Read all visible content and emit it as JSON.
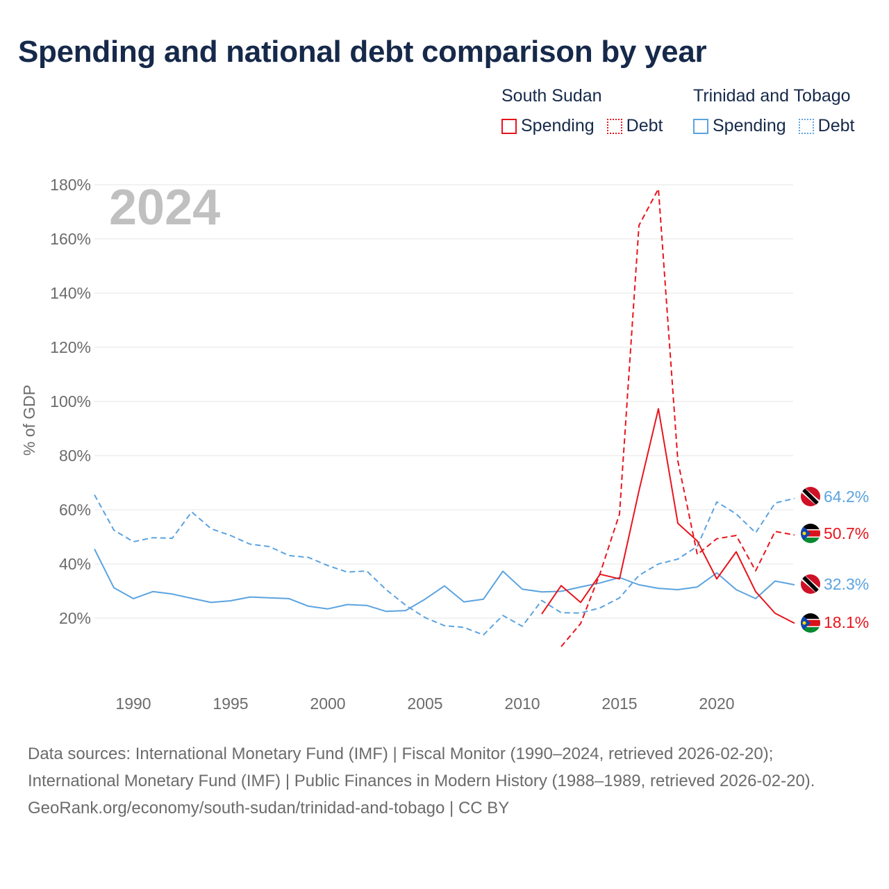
{
  "title": "Spending and national debt comparison by year",
  "legend": {
    "groups": [
      {
        "name": "South Sudan",
        "color": "#e8141c",
        "items": [
          {
            "label": "Spending",
            "style": "solid"
          },
          {
            "label": "Debt",
            "style": "dotted"
          }
        ]
      },
      {
        "name": "Trinidad and Tobago",
        "color": "#5ba3e0",
        "items": [
          {
            "label": "Spending",
            "style": "solid"
          },
          {
            "label": "Debt",
            "style": "dotted"
          }
        ]
      }
    ]
  },
  "chart_data": {
    "type": "line",
    "year_label": "2024",
    "ylabel": "% of GDP",
    "ylim": [
      0,
      180
    ],
    "xlim": [
      1988,
      2024
    ],
    "y_ticks": [
      20,
      40,
      60,
      80,
      100,
      120,
      140,
      160,
      180
    ],
    "y_tick_labels": [
      "20%",
      "40%",
      "60%",
      "80%",
      "100%",
      "120%",
      "140%",
      "160%",
      "180%"
    ],
    "x_ticks": [
      1990,
      1995,
      2000,
      2005,
      2010,
      2015,
      2020
    ],
    "x_tick_labels": [
      "1990",
      "1995",
      "2000",
      "2005",
      "2010",
      "2015",
      "2020"
    ],
    "series": [
      {
        "name": "Trinidad and Tobago Debt",
        "country": "Trinidad and Tobago",
        "kind": "Debt",
        "color": "#5ba3e0",
        "dashed": true,
        "end_label": "64.2%",
        "x": [
          1988,
          1989,
          1990,
          1991,
          1992,
          1993,
          1994,
          1995,
          1996,
          1997,
          1998,
          1999,
          2000,
          2001,
          2002,
          2003,
          2004,
          2005,
          2006,
          2007,
          2008,
          2009,
          2010,
          2011,
          2012,
          2013,
          2014,
          2015,
          2016,
          2017,
          2018,
          2019,
          2020,
          2021,
          2022,
          2023,
          2024
        ],
        "values": [
          65.5,
          52.5,
          48.2,
          49.7,
          49.5,
          59.2,
          53,
          50.5,
          47.3,
          46.4,
          43.1,
          42.4,
          39.4,
          37,
          37.4,
          30.5,
          24.8,
          20.2,
          17.2,
          16.6,
          13.8,
          21,
          17,
          26.5,
          22,
          21.9,
          23.8,
          27.5,
          35.8,
          40,
          41.8,
          46.5,
          62.9,
          58.5,
          51.5,
          62.5,
          64.2
        ]
      },
      {
        "name": "Trinidad and Tobago Spending",
        "country": "Trinidad and Tobago",
        "kind": "Spending",
        "color": "#5ba3e0",
        "dashed": false,
        "end_label": "32.3%",
        "x": [
          1988,
          1989,
          1990,
          1991,
          1992,
          1993,
          1994,
          1995,
          1996,
          1997,
          1998,
          1999,
          2000,
          2001,
          2002,
          2003,
          2004,
          2005,
          2006,
          2007,
          2008,
          2009,
          2010,
          2011,
          2012,
          2013,
          2014,
          2015,
          2016,
          2017,
          2018,
          2019,
          2020,
          2021,
          2022,
          2023,
          2024
        ],
        "values": [
          45.5,
          31.2,
          27.2,
          29.8,
          28.9,
          27.3,
          25.8,
          26.4,
          27.8,
          27.5,
          27.2,
          24.4,
          23.4,
          25,
          24.7,
          22.5,
          22.8,
          27,
          31.9,
          26,
          27,
          37.3,
          30.7,
          29.7,
          29.9,
          31.5,
          33,
          35,
          32.3,
          31,
          30.5,
          31.5,
          36.7,
          30.5,
          27.2,
          33.7,
          32.3
        ]
      },
      {
        "name": "South Sudan Debt",
        "country": "South Sudan",
        "kind": "Debt",
        "color": "#e8141c",
        "dashed": true,
        "end_label": "50.7%",
        "x": [
          2012,
          2013,
          2014,
          2015,
          2016,
          2017,
          2018,
          2019,
          2020,
          2021,
          2022,
          2023,
          2024
        ],
        "values": [
          9.5,
          18,
          36.5,
          58.5,
          165,
          178.5,
          78,
          43.5,
          49.3,
          50.5,
          37.5,
          52,
          50.7
        ]
      },
      {
        "name": "South Sudan Spending",
        "country": "South Sudan",
        "kind": "Spending",
        "color": "#e8141c",
        "dashed": false,
        "end_label": "18.1%",
        "x": [
          2011,
          2012,
          2013,
          2014,
          2015,
          2016,
          2017,
          2018,
          2019,
          2020,
          2021,
          2022,
          2023,
          2024
        ],
        "values": [
          21.5,
          32,
          25.8,
          36.2,
          34.5,
          67,
          97.3,
          55,
          48.5,
          34.5,
          44.5,
          29.8,
          21.8,
          18.1
        ]
      }
    ]
  },
  "source": {
    "line1": "Data sources: International Monetary Fund (IMF) | Fiscal Monitor (1990–2024, retrieved 2026-02-20); International Monetary Fund (IMF) | Public Finances in Modern History (1988–1989, retrieved 2026-02-20).",
    "line2": "GeoRank.org/economy/south-sudan/trinidad-and-tobago | CC BY"
  }
}
